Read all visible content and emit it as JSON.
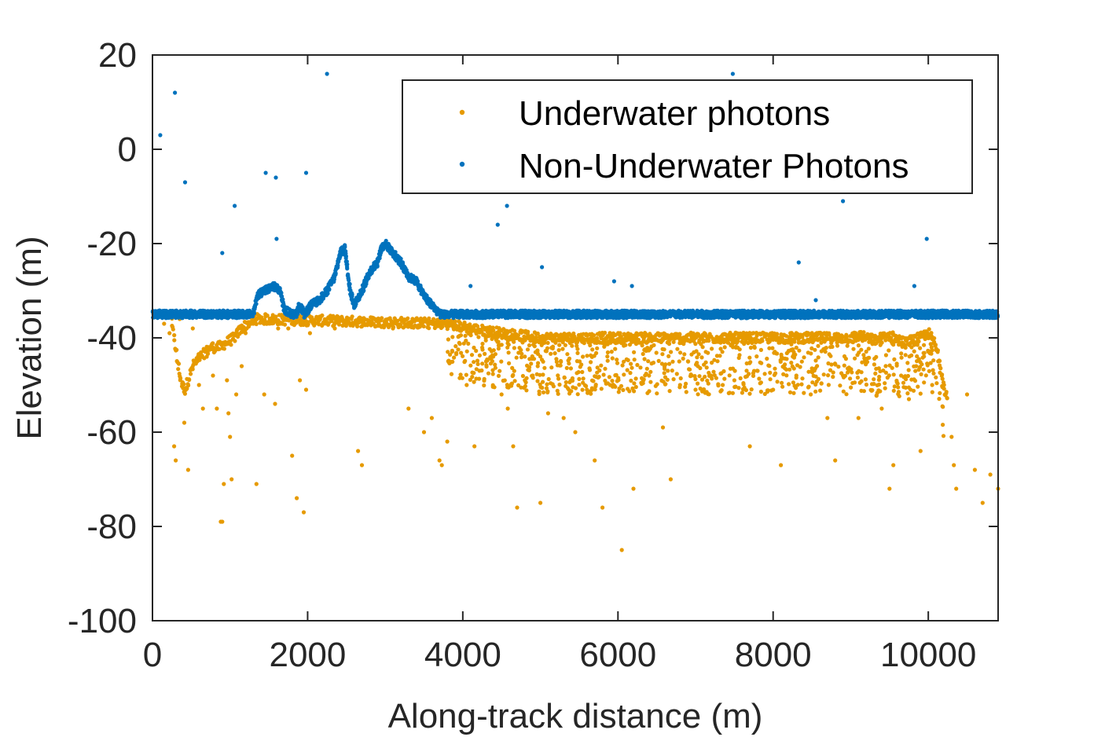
{
  "chart_data": {
    "type": "scatter",
    "title": "",
    "xlabel": "Along-track distance (m)",
    "ylabel": "Elevation (m)",
    "xlim": [
      0,
      10900
    ],
    "ylim": [
      -100,
      20
    ],
    "xticks": [
      0,
      2000,
      4000,
      6000,
      8000,
      10000
    ],
    "xtick_labels": [
      "0",
      "2000",
      "4000",
      "6000",
      "8000",
      "10000"
    ],
    "yticks": [
      -100,
      -80,
      -60,
      -40,
      -20,
      0,
      20
    ],
    "ytick_labels": [
      "-100",
      "-80",
      "-60",
      "-40",
      "-20",
      "0",
      "20"
    ],
    "grid": false,
    "legend_position": "top-right",
    "colors": {
      "underwater": "#e69a00",
      "non_underwater": "#0072bd",
      "axis": "#262626"
    },
    "series": [
      {
        "name": "Underwater photons",
        "color": "#e69a00",
        "trend": [
          [
            250,
            -37
          ],
          [
            330,
            -46
          ],
          [
            380,
            -50
          ],
          [
            420,
            -51
          ],
          [
            520,
            -46
          ],
          [
            620,
            -44
          ],
          [
            750,
            -42
          ],
          [
            850,
            -42
          ],
          [
            950,
            -41
          ],
          [
            1050,
            -40
          ],
          [
            1150,
            -38
          ],
          [
            1300,
            -36
          ],
          [
            1350,
            -36
          ],
          [
            3800,
            -37
          ],
          [
            4100,
            -38
          ],
          [
            4500,
            -39
          ],
          [
            5000,
            -40
          ],
          [
            6000,
            -40
          ],
          [
            7000,
            -40
          ],
          [
            8000,
            -40
          ],
          [
            9000,
            -40
          ],
          [
            9100,
            -39.5
          ],
          [
            9300,
            -40.5
          ],
          [
            9500,
            -39.5
          ],
          [
            9700,
            -41
          ],
          [
            9900,
            -40
          ],
          [
            10000,
            -39
          ],
          [
            10080,
            -41
          ],
          [
            10150,
            -45
          ],
          [
            10200,
            -50
          ],
          [
            10250,
            -53
          ]
        ],
        "scattered": [
          [
            150,
            -37
          ],
          [
            220,
            -39
          ],
          [
            280,
            -63
          ],
          [
            300,
            -66
          ],
          [
            350,
            -36
          ],
          [
            410,
            -58
          ],
          [
            460,
            -68
          ],
          [
            520,
            -38
          ],
          [
            600,
            -50
          ],
          [
            650,
            -55
          ],
          [
            700,
            -44
          ],
          [
            780,
            -48
          ],
          [
            830,
            -55
          ],
          [
            880,
            -79
          ],
          [
            900,
            -79
          ],
          [
            920,
            -71
          ],
          [
            960,
            -49
          ],
          [
            980,
            -56
          ],
          [
            1000,
            -61
          ],
          [
            1020,
            -70
          ],
          [
            1080,
            -52
          ],
          [
            1150,
            -46
          ],
          [
            1200,
            -39
          ],
          [
            1300,
            -37
          ],
          [
            1340,
            -71
          ],
          [
            1440,
            -52
          ],
          [
            1550,
            -36
          ],
          [
            1580,
            -54
          ],
          [
            1620,
            -38
          ],
          [
            1750,
            -38
          ],
          [
            1800,
            -65
          ],
          [
            1860,
            -74
          ],
          [
            1900,
            -49
          ],
          [
            1950,
            -77
          ],
          [
            1980,
            -51
          ],
          [
            2030,
            -39
          ],
          [
            2200,
            -37
          ],
          [
            2350,
            -38
          ],
          [
            2500,
            -37
          ],
          [
            2650,
            -64
          ],
          [
            2700,
            -67
          ],
          [
            2850,
            -37
          ],
          [
            3100,
            -38
          ],
          [
            3300,
            -55
          ],
          [
            3500,
            -60
          ],
          [
            3600,
            -57
          ],
          [
            3700,
            -66
          ],
          [
            3730,
            -67
          ],
          [
            3800,
            -62
          ],
          [
            4050,
            -50
          ],
          [
            4150,
            -63
          ],
          [
            4300,
            -45
          ],
          [
            4500,
            -52
          ],
          [
            4580,
            -55
          ],
          [
            4650,
            -63
          ],
          [
            4700,
            -76
          ],
          [
            4800,
            -49
          ],
          [
            5000,
            -75
          ],
          [
            5100,
            -56
          ],
          [
            5300,
            -57
          ],
          [
            5450,
            -60
          ],
          [
            5600,
            -51
          ],
          [
            5700,
            -66
          ],
          [
            5800,
            -76
          ],
          [
            5900,
            -50
          ],
          [
            6050,
            -85
          ],
          [
            6200,
            -72
          ],
          [
            6400,
            -48
          ],
          [
            6580,
            -59
          ],
          [
            6680,
            -70
          ],
          [
            6800,
            -50
          ],
          [
            6950,
            -48
          ],
          [
            7000,
            -51
          ],
          [
            7200,
            -48
          ],
          [
            7350,
            -50
          ],
          [
            7500,
            -49
          ],
          [
            7700,
            -63
          ],
          [
            7800,
            -47
          ],
          [
            8000,
            -51
          ],
          [
            8100,
            -67
          ],
          [
            8300,
            -48
          ],
          [
            8500,
            -47
          ],
          [
            8700,
            -57
          ],
          [
            8800,
            -66
          ],
          [
            8900,
            -48
          ],
          [
            9100,
            -57
          ],
          [
            9200,
            -45
          ],
          [
            9400,
            -55
          ],
          [
            9500,
            -72
          ],
          [
            9550,
            -67
          ],
          [
            9650,
            -48
          ],
          [
            9750,
            -53
          ],
          [
            9900,
            -64
          ],
          [
            10050,
            -50
          ],
          [
            10300,
            -61
          ],
          [
            10330,
            -67
          ],
          [
            10360,
            -72
          ],
          [
            10500,
            -52
          ],
          [
            10600,
            -68
          ],
          [
            10700,
            -75
          ],
          [
            10800,
            -69
          ],
          [
            10900,
            -72
          ]
        ]
      },
      {
        "name": "Non-Underwater Photons",
        "color": "#0072bd",
        "trend": [
          [
            0,
            -35
          ],
          [
            1300,
            -35
          ],
          [
            1350,
            -31
          ],
          [
            1450,
            -30
          ],
          [
            1550,
            -29
          ],
          [
            1650,
            -30
          ],
          [
            1700,
            -34
          ],
          [
            1800,
            -35
          ],
          [
            1850,
            -35
          ],
          [
            1900,
            -33
          ],
          [
            1960,
            -35
          ],
          [
            2050,
            -33
          ],
          [
            2150,
            -32
          ],
          [
            2250,
            -30
          ],
          [
            2350,
            -27
          ],
          [
            2420,
            -22
          ],
          [
            2480,
            -21
          ],
          [
            2550,
            -30
          ],
          [
            2600,
            -33
          ],
          [
            2700,
            -30
          ],
          [
            2800,
            -26
          ],
          [
            2900,
            -24
          ],
          [
            2950,
            -21
          ],
          [
            3000,
            -20
          ],
          [
            3100,
            -22
          ],
          [
            3200,
            -24
          ],
          [
            3300,
            -27
          ],
          [
            3400,
            -28
          ],
          [
            3500,
            -31
          ],
          [
            3600,
            -33
          ],
          [
            3700,
            -35
          ],
          [
            3800,
            -35
          ],
          [
            10900,
            -35
          ]
        ],
        "scattered": [
          [
            100,
            3
          ],
          [
            290,
            12
          ],
          [
            420,
            -7
          ],
          [
            900,
            -22
          ],
          [
            1060,
            -12
          ],
          [
            1460,
            -5
          ],
          [
            1590,
            -6
          ],
          [
            1600,
            -19
          ],
          [
            1980,
            -5
          ],
          [
            2250,
            16
          ],
          [
            4100,
            -29
          ],
          [
            4450,
            -16
          ],
          [
            4570,
            -12
          ],
          [
            5020,
            -25
          ],
          [
            5950,
            -28
          ],
          [
            6180,
            -29
          ],
          [
            7480,
            16
          ],
          [
            8330,
            -24
          ],
          [
            8550,
            -32
          ],
          [
            8900,
            -11
          ],
          [
            9820,
            -29
          ],
          [
            9980,
            -19
          ]
        ]
      }
    ]
  }
}
